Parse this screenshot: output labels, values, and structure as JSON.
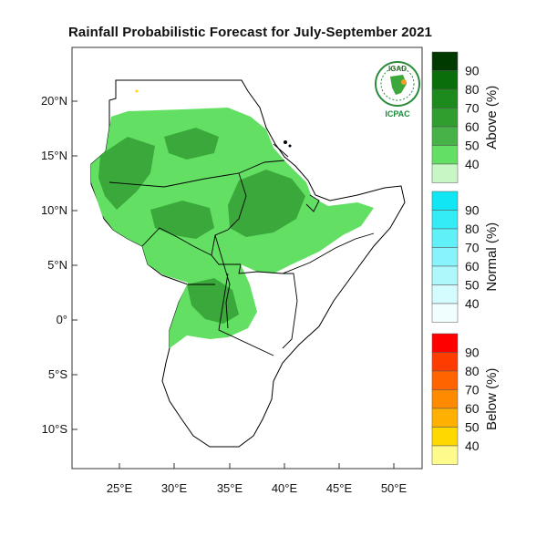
{
  "title": "Rainfall Probabilistic Forecast for July-September 2021",
  "logo": {
    "top_text": "IGAD",
    "bottom_text": "ICPAC"
  },
  "axes": {
    "lat_labels": [
      "20°N",
      "15°N",
      "10°N",
      "5°N",
      "0°",
      "5°S",
      "10°S"
    ],
    "lon_labels": [
      "25°E",
      "30°E",
      "35°E",
      "40°E",
      "45°E",
      "50°E"
    ]
  },
  "colorbars": [
    {
      "name": "Above (%)",
      "ticks": [
        "90",
        "80",
        "70",
        "60",
        "50",
        "40"
      ],
      "colors": [
        "#003a00",
        "#0a6e0a",
        "#1d8a1d",
        "#2f9e2f",
        "#47b247",
        "#63e063",
        "#c8f7c5"
      ]
    },
    {
      "name": "Normal (%)",
      "ticks": [
        "90",
        "80",
        "70",
        "60",
        "50",
        "40"
      ],
      "colors": [
        "#11e6f5",
        "#33ecf6",
        "#5ff0f8",
        "#88f3fa",
        "#aef7fb",
        "#d4fbfd",
        "#f1fefe"
      ]
    },
    {
      "name": "Below (%)",
      "ticks": [
        "90",
        "80",
        "70",
        "60",
        "50",
        "40"
      ],
      "colors": [
        "#ff0000",
        "#ff3c00",
        "#ff6400",
        "#ff8a00",
        "#ffb000",
        "#ffd800",
        "#fffa8c"
      ]
    }
  ],
  "colors": {
    "land_outline": "#000000",
    "above_light": "#63e063",
    "above_dark": "#3aa83a"
  }
}
